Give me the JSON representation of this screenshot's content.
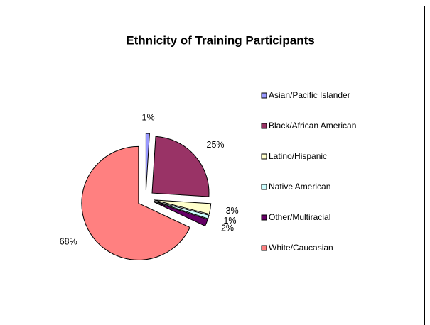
{
  "chart_data": {
    "type": "pie",
    "title": "Ethnicity of Training Participants",
    "categories": [
      "Asian/Pacific Islander",
      "Black/African American",
      "Latino/Hispanic",
      "Native American",
      "Other/Multiracial",
      "White/Caucasian"
    ],
    "values": [
      1,
      25,
      3,
      1,
      2,
      68
    ],
    "value_labels": [
      "1%",
      "25%",
      "3%",
      "1%",
      "2%",
      "68%"
    ],
    "colors": [
      "#9999ff",
      "#993366",
      "#ffffcc",
      "#ccffff",
      "#660066",
      "#ff8080"
    ],
    "legend": "right"
  }
}
